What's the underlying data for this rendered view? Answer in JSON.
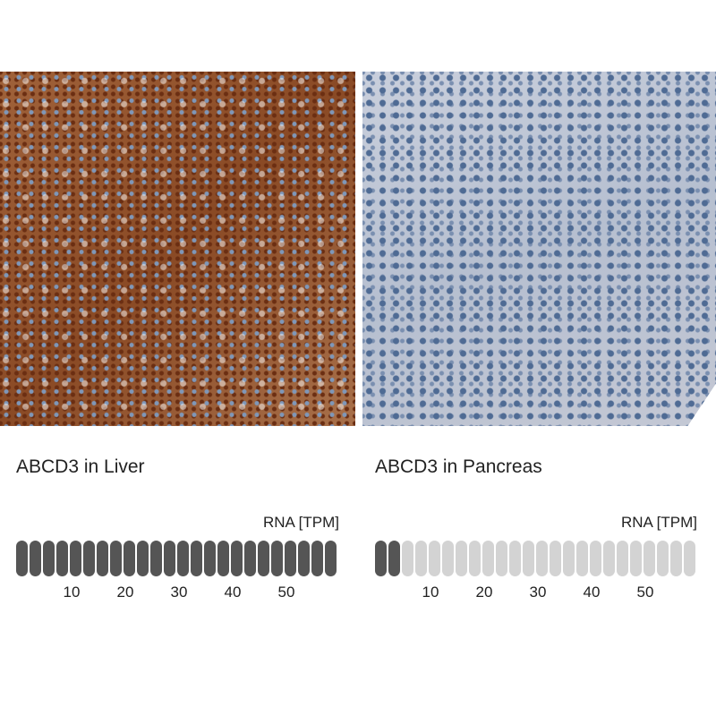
{
  "panels": [
    {
      "title": "ABCD3 in Liver",
      "unit": "RNA [TPM]",
      "bars_total": 24,
      "bars_filled": 24,
      "ticks": [
        "10",
        "20",
        "30",
        "40",
        "50"
      ]
    },
    {
      "title": "ABCD3 in Pancreas",
      "unit": "RNA [TPM]",
      "bars_total": 24,
      "bars_filled": 2,
      "ticks": [
        "10",
        "20",
        "30",
        "40",
        "50"
      ]
    }
  ],
  "colors": {
    "filled": "#555555",
    "empty": "#d3d3d3"
  }
}
